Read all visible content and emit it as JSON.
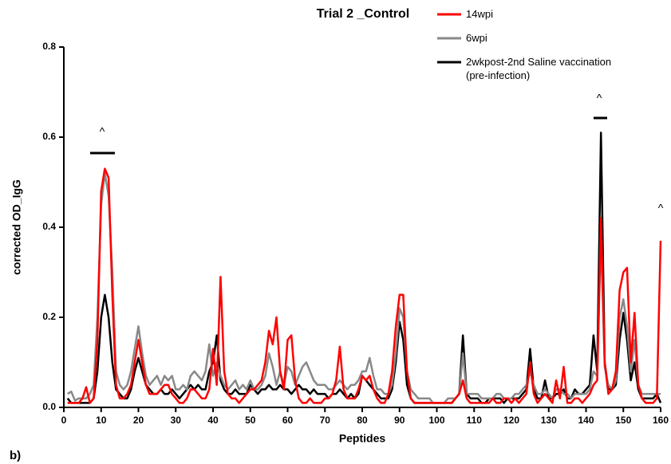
{
  "chart_data": {
    "type": "line",
    "title": "Trial 2 _Control",
    "xlabel": "Peptides",
    "ylabel": "corrected OD_IgG",
    "panel_label": "b)",
    "annotations": [
      "^",
      "^",
      "^"
    ],
    "xlim": [
      0,
      160
    ],
    "xticks": [
      0,
      10,
      20,
      30,
      40,
      50,
      60,
      70,
      80,
      90,
      100,
      110,
      120,
      130,
      140,
      150,
      160
    ],
    "ylim": [
      0,
      0.8
    ],
    "yticks": [
      {
        "value": 0,
        "label": "0.0"
      },
      0.2,
      0.4,
      0.6,
      0.8
    ],
    "grid": false,
    "x": [
      1,
      2,
      3,
      4,
      5,
      6,
      7,
      8,
      9,
      10,
      11,
      12,
      13,
      14,
      15,
      16,
      17,
      18,
      19,
      20,
      21,
      22,
      23,
      24,
      25,
      26,
      27,
      28,
      29,
      30,
      31,
      32,
      33,
      34,
      35,
      36,
      37,
      38,
      39,
      40,
      41,
      42,
      43,
      44,
      45,
      46,
      47,
      48,
      49,
      50,
      51,
      52,
      53,
      54,
      55,
      56,
      57,
      58,
      59,
      60,
      61,
      62,
      63,
      64,
      65,
      66,
      67,
      68,
      69,
      70,
      71,
      72,
      73,
      74,
      75,
      76,
      77,
      78,
      79,
      80,
      81,
      82,
      83,
      84,
      85,
      86,
      87,
      88,
      89,
      90,
      91,
      92,
      93,
      94,
      95,
      96,
      97,
      98,
      99,
      100,
      101,
      102,
      103,
      104,
      105,
      106,
      107,
      108,
      109,
      110,
      111,
      112,
      113,
      114,
      115,
      116,
      117,
      118,
      119,
      120,
      121,
      122,
      123,
      124,
      125,
      126,
      127,
      128,
      129,
      130,
      131,
      132,
      133,
      134,
      135,
      136,
      137,
      138,
      139,
      140,
      141,
      142,
      143,
      144,
      145,
      146,
      147,
      148,
      149,
      150,
      151,
      152,
      153,
      154,
      155,
      156,
      157,
      158,
      159,
      160
    ],
    "series": [
      {
        "name": "14wpi",
        "color": "#ff0000",
        "values": [
          0.01,
          0.01,
          0.01,
          0.01,
          0.02,
          0.045,
          0.01,
          0.02,
          0.15,
          0.48,
          0.53,
          0.51,
          0.25,
          0.05,
          0.02,
          0.02,
          0.03,
          0.05,
          0.1,
          0.15,
          0.1,
          0.05,
          0.03,
          0.03,
          0.03,
          0.04,
          0.05,
          0.05,
          0.03,
          0.02,
          0.01,
          0.01,
          0.02,
          0.04,
          0.04,
          0.03,
          0.02,
          0.02,
          0.04,
          0.13,
          0.05,
          0.29,
          0.08,
          0.03,
          0.02,
          0.02,
          0.01,
          0.02,
          0.03,
          0.04,
          0.04,
          0.05,
          0.06,
          0.1,
          0.17,
          0.14,
          0.2,
          0.08,
          0.04,
          0.15,
          0.16,
          0.06,
          0.02,
          0.01,
          0.01,
          0.02,
          0.01,
          0.01,
          0.01,
          0.02,
          0.02,
          0.03,
          0.06,
          0.135,
          0.04,
          0.02,
          0.02,
          0.02,
          0.04,
          0.07,
          0.06,
          0.07,
          0.04,
          0.02,
          0.01,
          0.01,
          0.03,
          0.08,
          0.18,
          0.25,
          0.25,
          0.08,
          0.02,
          0.01,
          0.01,
          0.01,
          0.01,
          0.01,
          0.01,
          0.01,
          0.01,
          0.01,
          0.01,
          0.01,
          0.02,
          0.03,
          0.06,
          0.02,
          0.01,
          0.01,
          0.01,
          0.01,
          0.01,
          0.01,
          0.02,
          0.01,
          0.01,
          0.02,
          0.02,
          0.01,
          0.02,
          0.01,
          0.02,
          0.03,
          0.1,
          0.03,
          0.01,
          0.02,
          0.03,
          0.02,
          0.01,
          0.06,
          0.02,
          0.09,
          0.01,
          0.01,
          0.02,
          0.02,
          0.01,
          0.02,
          0.03,
          0.05,
          0.06,
          0.42,
          0.1,
          0.03,
          0.04,
          0.08,
          0.26,
          0.3,
          0.31,
          0.1,
          0.21,
          0.05,
          0.02,
          0.01,
          0.01,
          0.01,
          0.02,
          0.37
        ]
      },
      {
        "name": "6wpi",
        "color": "#888888",
        "values": [
          0.03,
          0.035,
          0.015,
          0.02,
          0.02,
          0.02,
          0.03,
          0.05,
          0.2,
          0.45,
          0.52,
          0.47,
          0.3,
          0.08,
          0.05,
          0.04,
          0.05,
          0.08,
          0.13,
          0.18,
          0.12,
          0.07,
          0.05,
          0.06,
          0.07,
          0.05,
          0.07,
          0.06,
          0.07,
          0.04,
          0.04,
          0.05,
          0.04,
          0.07,
          0.08,
          0.07,
          0.06,
          0.08,
          0.14,
          0.07,
          0.1,
          0.07,
          0.05,
          0.04,
          0.05,
          0.06,
          0.04,
          0.05,
          0.04,
          0.06,
          0.04,
          0.04,
          0.05,
          0.07,
          0.12,
          0.09,
          0.05,
          0.08,
          0.05,
          0.09,
          0.08,
          0.05,
          0.07,
          0.09,
          0.1,
          0.08,
          0.06,
          0.05,
          0.05,
          0.05,
          0.04,
          0.04,
          0.05,
          0.06,
          0.05,
          0.04,
          0.05,
          0.05,
          0.06,
          0.08,
          0.08,
          0.11,
          0.07,
          0.04,
          0.04,
          0.03,
          0.03,
          0.05,
          0.12,
          0.22,
          0.2,
          0.08,
          0.04,
          0.03,
          0.02,
          0.02,
          0.02,
          0.02,
          0.01,
          0.01,
          0.01,
          0.01,
          0.02,
          0.02,
          0.02,
          0.03,
          0.12,
          0.03,
          0.03,
          0.03,
          0.03,
          0.02,
          0.02,
          0.02,
          0.02,
          0.03,
          0.03,
          0.02,
          0.02,
          0.02,
          0.03,
          0.03,
          0.04,
          0.05,
          0.08,
          0.05,
          0.03,
          0.03,
          0.04,
          0.03,
          0.02,
          0.04,
          0.04,
          0.03,
          0.03,
          0.02,
          0.03,
          0.03,
          0.03,
          0.03,
          0.04,
          0.08,
          0.07,
          0.38,
          0.09,
          0.05,
          0.04,
          0.06,
          0.2,
          0.24,
          0.18,
          0.08,
          0.15,
          0.05,
          0.03,
          0.03,
          0.03,
          0.03,
          0.03,
          0.03
        ]
      },
      {
        "name": "2wkpost-2nd Saline vaccination (pre-infection)",
        "color": "#000000",
        "values": [
          0.02,
          0.01,
          0.01,
          0.01,
          0.01,
          0.01,
          0.01,
          0.02,
          0.08,
          0.2,
          0.25,
          0.2,
          0.1,
          0.04,
          0.03,
          0.02,
          0.02,
          0.04,
          0.08,
          0.11,
          0.08,
          0.05,
          0.04,
          0.03,
          0.03,
          0.04,
          0.03,
          0.03,
          0.04,
          0.03,
          0.02,
          0.03,
          0.04,
          0.05,
          0.04,
          0.05,
          0.04,
          0.04,
          0.08,
          0.1,
          0.16,
          0.06,
          0.04,
          0.03,
          0.03,
          0.04,
          0.03,
          0.03,
          0.03,
          0.05,
          0.04,
          0.03,
          0.04,
          0.04,
          0.05,
          0.04,
          0.04,
          0.05,
          0.04,
          0.04,
          0.03,
          0.04,
          0.05,
          0.04,
          0.04,
          0.03,
          0.04,
          0.03,
          0.03,
          0.03,
          0.02,
          0.03,
          0.03,
          0.04,
          0.03,
          0.02,
          0.03,
          0.02,
          0.03,
          0.07,
          0.06,
          0.05,
          0.04,
          0.03,
          0.02,
          0.02,
          0.02,
          0.04,
          0.1,
          0.19,
          0.15,
          0.05,
          0.02,
          0.01,
          0.01,
          0.01,
          0.01,
          0.01,
          0.01,
          0.01,
          0.01,
          0.01,
          0.01,
          0.01,
          0.02,
          0.03,
          0.16,
          0.03,
          0.02,
          0.02,
          0.02,
          0.01,
          0.01,
          0.02,
          0.02,
          0.02,
          0.02,
          0.01,
          0.02,
          0.02,
          0.02,
          0.02,
          0.03,
          0.04,
          0.13,
          0.04,
          0.02,
          0.02,
          0.06,
          0.02,
          0.02,
          0.03,
          0.03,
          0.04,
          0.02,
          0.02,
          0.04,
          0.03,
          0.03,
          0.04,
          0.05,
          0.16,
          0.08,
          0.61,
          0.1,
          0.04,
          0.04,
          0.05,
          0.15,
          0.21,
          0.15,
          0.06,
          0.1,
          0.04,
          0.02,
          0.02,
          0.02,
          0.02,
          0.03,
          0.01
        ]
      }
    ]
  }
}
